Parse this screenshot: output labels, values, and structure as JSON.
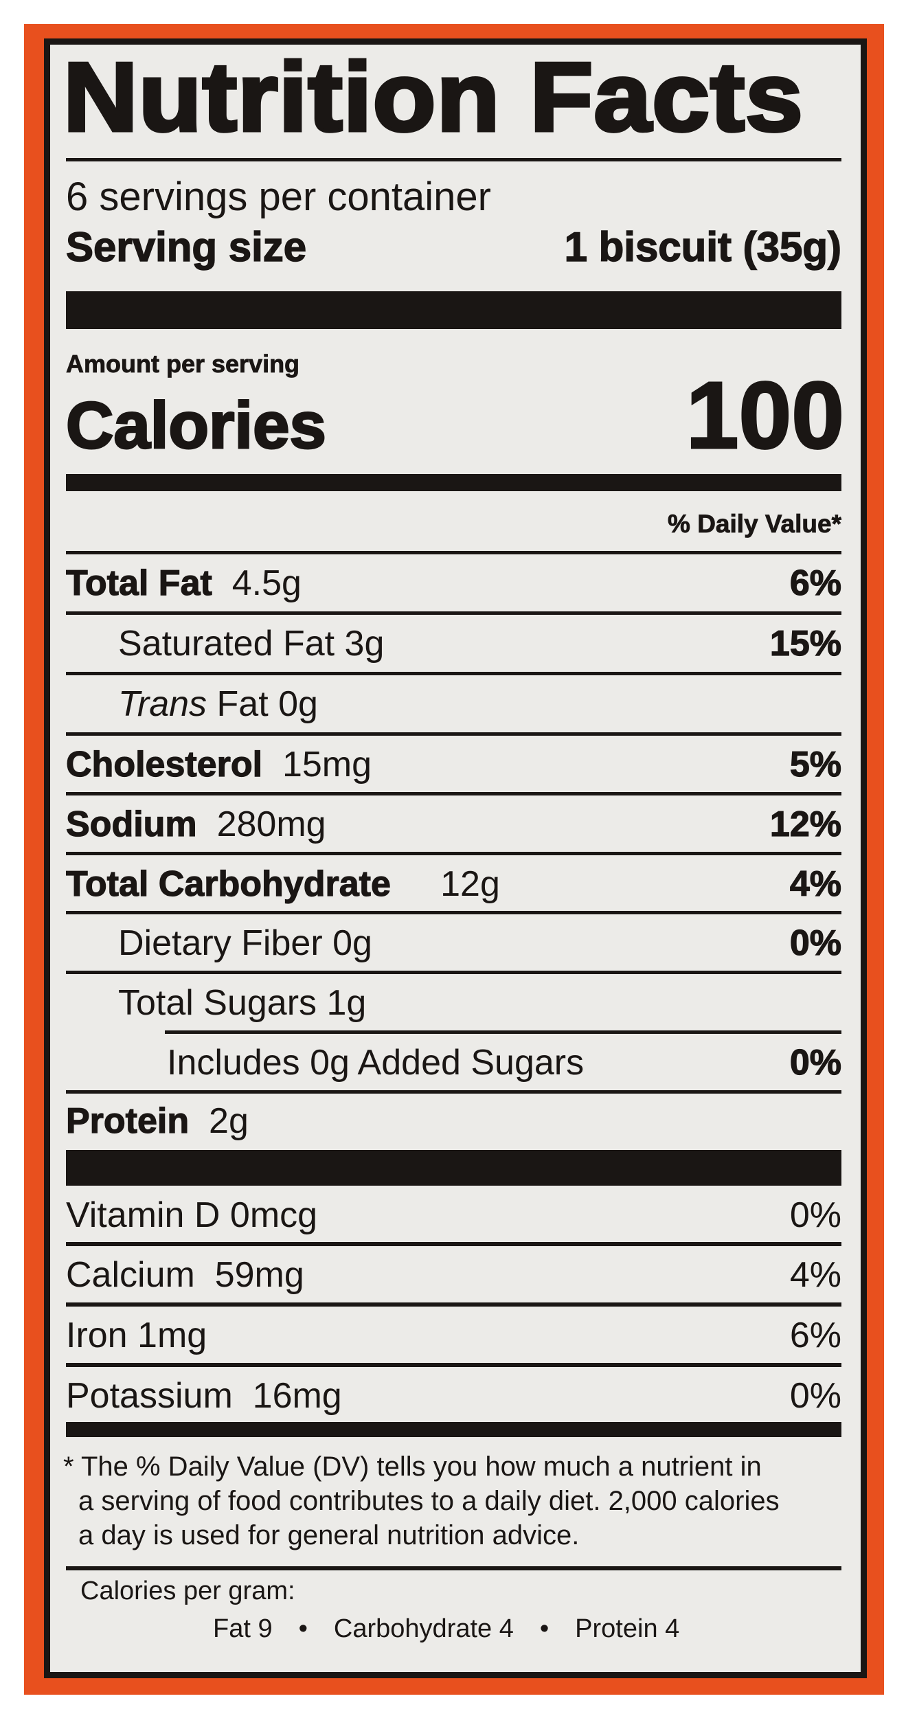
{
  "colors": {
    "border_orange": "#e8501e",
    "ink": "#1a1614",
    "panel": "#ecebe8"
  },
  "label": {
    "title": "Nutrition Facts",
    "servings_per_container": "6 servings per container",
    "serving_size_label": "Serving size",
    "serving_size_value": "1 biscuit (35g)",
    "amount_per_serving": "Amount per serving",
    "calories_label": "Calories",
    "calories_value": "100",
    "daily_value_header": "% Daily Value*",
    "nutrients": [
      {
        "name": "Total Fat",
        "amount": "4.5g",
        "dv": "6%"
      },
      {
        "name": "Saturated Fat 3g",
        "amount": "",
        "dv": "15%"
      },
      {
        "name_italic": "Trans",
        "name": " Fat 0g",
        "amount": "",
        "dv": ""
      },
      {
        "name": "Cholesterol",
        "amount": "15mg",
        "dv": "5%"
      },
      {
        "name": "Sodium",
        "amount": "280mg",
        "dv": "12%"
      },
      {
        "name": "Total Carbohydrate",
        "amount": "12g",
        "dv": "4%"
      },
      {
        "name": "Dietary Fiber 0g",
        "amount": "",
        "dv": "0%"
      },
      {
        "name": "Total Sugars 1g",
        "amount": "",
        "dv": ""
      },
      {
        "name": "Includes 0g Added Sugars",
        "amount": "",
        "dv": "0%"
      },
      {
        "name": "Protein",
        "amount": "2g",
        "dv": ""
      }
    ],
    "vitamins": [
      {
        "name": "Vitamin D 0mcg",
        "dv": "0%"
      },
      {
        "name": "Calcium  59mg",
        "dv": "4%"
      },
      {
        "name": "Iron 1mg",
        "dv": "6%"
      },
      {
        "name": "Potassium  16mg",
        "dv": "0%"
      }
    ],
    "footnote": {
      "line1": "* The % Daily Value (DV) tells you how much a nutrient in",
      "line2": "a serving of food contributes to a daily diet. 2,000 calories",
      "line3": "a day is used for general nutrition advice."
    },
    "calories_per_gram": {
      "heading": "Calories per gram:",
      "fat": "Fat 9",
      "carbohydrate": "Carbohydrate 4",
      "protein": "Protein 4",
      "separator": "•"
    }
  }
}
